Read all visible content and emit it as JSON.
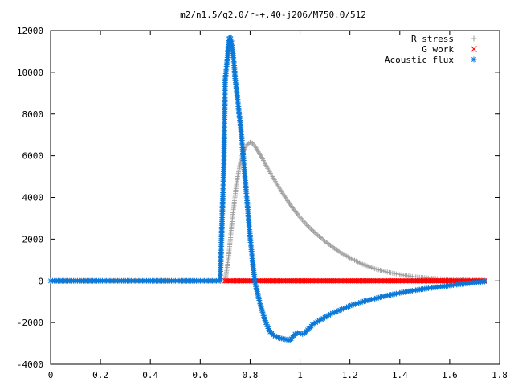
{
  "chart_data": {
    "type": "scatter",
    "title": "m2/n1.5/q2.0/r-+.40-j206/M750.0/512",
    "xlabel": "",
    "ylabel": "",
    "xlim": [
      0,
      1.8
    ],
    "ylim": [
      -4000,
      12000
    ],
    "x_ticks": [
      "0",
      "0.2",
      "0.4",
      "0.6",
      "0.8",
      "1",
      "1.2",
      "1.4",
      "1.6",
      "1.8"
    ],
    "y_ticks": [
      "-4000",
      "-2000",
      "0",
      "2000",
      "4000",
      "6000",
      "8000",
      "10000",
      "12000"
    ],
    "grid": false,
    "legend_position": "top-right",
    "series": [
      {
        "name": "R stress",
        "marker": "+",
        "color": "#a0a0a0",
        "points": [
          [
            0.0,
            0
          ],
          [
            0.1,
            0
          ],
          [
            0.2,
            0
          ],
          [
            0.3,
            0
          ],
          [
            0.4,
            0
          ],
          [
            0.5,
            0
          ],
          [
            0.6,
            0
          ],
          [
            0.68,
            0
          ],
          [
            0.7,
            0
          ],
          [
            0.705,
            400
          ],
          [
            0.71,
            800
          ],
          [
            0.715,
            1300
          ],
          [
            0.72,
            1900
          ],
          [
            0.725,
            2500
          ],
          [
            0.73,
            3100
          ],
          [
            0.735,
            3600
          ],
          [
            0.74,
            4100
          ],
          [
            0.745,
            4600
          ],
          [
            0.75,
            5000
          ],
          [
            0.755,
            5300
          ],
          [
            0.76,
            5600
          ],
          [
            0.765,
            5900
          ],
          [
            0.77,
            6100
          ],
          [
            0.78,
            6400
          ],
          [
            0.79,
            6550
          ],
          [
            0.8,
            6650
          ],
          [
            0.81,
            6600
          ],
          [
            0.82,
            6450
          ],
          [
            0.83,
            6250
          ],
          [
            0.84,
            6050
          ],
          [
            0.85,
            5850
          ],
          [
            0.87,
            5400
          ],
          [
            0.89,
            5000
          ],
          [
            0.91,
            4600
          ],
          [
            0.93,
            4200
          ],
          [
            0.95,
            3850
          ],
          [
            0.97,
            3500
          ],
          [
            1.0,
            3050
          ],
          [
            1.03,
            2650
          ],
          [
            1.06,
            2300
          ],
          [
            1.1,
            1900
          ],
          [
            1.15,
            1450
          ],
          [
            1.2,
            1100
          ],
          [
            1.25,
            800
          ],
          [
            1.3,
            580
          ],
          [
            1.35,
            420
          ],
          [
            1.4,
            300
          ],
          [
            1.45,
            210
          ],
          [
            1.5,
            150
          ],
          [
            1.55,
            105
          ],
          [
            1.6,
            75
          ],
          [
            1.65,
            55
          ],
          [
            1.7,
            40
          ],
          [
            1.74,
            30
          ]
        ]
      },
      {
        "name": "G work",
        "marker": "x",
        "color": "#ff0000",
        "points": [
          [
            0.7,
            0
          ],
          [
            0.75,
            0
          ],
          [
            0.8,
            0
          ],
          [
            0.85,
            0
          ],
          [
            0.9,
            0
          ],
          [
            0.95,
            0
          ],
          [
            1.0,
            0
          ],
          [
            1.05,
            0
          ],
          [
            1.1,
            0
          ],
          [
            1.15,
            0
          ],
          [
            1.2,
            0
          ],
          [
            1.25,
            0
          ],
          [
            1.3,
            0
          ],
          [
            1.35,
            0
          ],
          [
            1.4,
            0
          ],
          [
            1.45,
            0
          ],
          [
            1.5,
            0
          ],
          [
            1.55,
            0
          ],
          [
            1.6,
            0
          ],
          [
            1.65,
            0
          ],
          [
            1.7,
            0
          ],
          [
            1.74,
            0
          ]
        ]
      },
      {
        "name": "Acoustic flux",
        "marker": "*",
        "color": "#0a78d8",
        "points": [
          [
            0.0,
            0
          ],
          [
            0.1,
            0
          ],
          [
            0.2,
            0
          ],
          [
            0.3,
            0
          ],
          [
            0.4,
            0
          ],
          [
            0.5,
            0
          ],
          [
            0.6,
            0
          ],
          [
            0.68,
            0
          ],
          [
            0.695,
            5700
          ],
          [
            0.7,
            9600
          ],
          [
            0.705,
            10200
          ],
          [
            0.71,
            10800
          ],
          [
            0.715,
            11600
          ],
          [
            0.72,
            11700
          ],
          [
            0.725,
            11500
          ],
          [
            0.73,
            11000
          ],
          [
            0.735,
            10500
          ],
          [
            0.74,
            9700
          ],
          [
            0.745,
            9200
          ],
          [
            0.75,
            8700
          ],
          [
            0.755,
            8100
          ],
          [
            0.76,
            7600
          ],
          [
            0.765,
            7000
          ],
          [
            0.77,
            6300
          ],
          [
            0.775,
            5600
          ],
          [
            0.78,
            4900
          ],
          [
            0.785,
            4200
          ],
          [
            0.79,
            3500
          ],
          [
            0.795,
            2800
          ],
          [
            0.8,
            2100
          ],
          [
            0.805,
            1500
          ],
          [
            0.81,
            900
          ],
          [
            0.815,
            400
          ],
          [
            0.82,
            -100
          ],
          [
            0.83,
            -600
          ],
          [
            0.84,
            -1100
          ],
          [
            0.85,
            -1500
          ],
          [
            0.86,
            -1900
          ],
          [
            0.87,
            -2200
          ],
          [
            0.88,
            -2450
          ],
          [
            0.9,
            -2650
          ],
          [
            0.92,
            -2750
          ],
          [
            0.94,
            -2800
          ],
          [
            0.96,
            -2850
          ],
          [
            0.97,
            -2700
          ],
          [
            0.98,
            -2550
          ],
          [
            0.99,
            -2500
          ],
          [
            1.0,
            -2500
          ],
          [
            1.01,
            -2550
          ],
          [
            1.02,
            -2500
          ],
          [
            1.03,
            -2350
          ],
          [
            1.04,
            -2250
          ],
          [
            1.05,
            -2100
          ],
          [
            1.07,
            -1950
          ],
          [
            1.1,
            -1750
          ],
          [
            1.13,
            -1550
          ],
          [
            1.16,
            -1400
          ],
          [
            1.2,
            -1200
          ],
          [
            1.25,
            -1000
          ],
          [
            1.3,
            -850
          ],
          [
            1.35,
            -700
          ],
          [
            1.4,
            -580
          ],
          [
            1.45,
            -470
          ],
          [
            1.5,
            -380
          ],
          [
            1.55,
            -300
          ],
          [
            1.6,
            -220
          ],
          [
            1.65,
            -150
          ],
          [
            1.7,
            -80
          ],
          [
            1.74,
            -30
          ]
        ]
      }
    ]
  }
}
